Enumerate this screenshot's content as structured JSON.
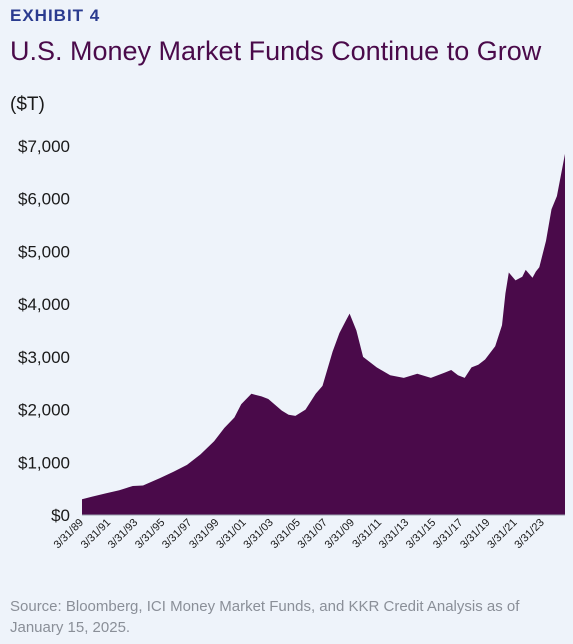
{
  "exhibit_label": "EXHIBIT 4",
  "title": "U.S. Money Market Funds Continue to Grow",
  "unit_label": "($T)",
  "source_note": "Source: Bloomberg, ICI Money Market Funds, and KKR Credit Analysis as of January 15, 2025.",
  "colors": {
    "fill": "#4a0a4a",
    "title": "#4a0a4a",
    "exhibit": "#2a3b8f",
    "background": "#eef3fa"
  },
  "chart_data": {
    "type": "area",
    "title": "U.S. Money Market Funds Continue to Grow",
    "ylabel": "($T)",
    "xlabel": "",
    "ylim": [
      0,
      7000
    ],
    "xlim": [
      1989.25,
      2024.9
    ],
    "grid": false,
    "yticks": [
      {
        "value": 0,
        "label": "$0"
      },
      {
        "value": 1000,
        "label": "$1,000"
      },
      {
        "value": 2000,
        "label": "$2,000"
      },
      {
        "value": 3000,
        "label": "$3,000"
      },
      {
        "value": 4000,
        "label": "$4,000"
      },
      {
        "value": 5000,
        "label": "$5,000"
      },
      {
        "value": 6000,
        "label": "$6,000"
      },
      {
        "value": 7000,
        "label": "$7,000"
      }
    ],
    "xticks": [
      {
        "value": 1989.25,
        "label": "3/31/89"
      },
      {
        "value": 1991.25,
        "label": "3/31/91"
      },
      {
        "value": 1993.25,
        "label": "3/31/93"
      },
      {
        "value": 1995.25,
        "label": "3/31/95"
      },
      {
        "value": 1997.25,
        "label": "3/31/97"
      },
      {
        "value": 1999.25,
        "label": "3/31/99"
      },
      {
        "value": 2001.25,
        "label": "3/31/01"
      },
      {
        "value": 2003.25,
        "label": "3/31/03"
      },
      {
        "value": 2005.25,
        "label": "3/31/05"
      },
      {
        "value": 2007.25,
        "label": "3/31/07"
      },
      {
        "value": 2009.25,
        "label": "3/31/09"
      },
      {
        "value": 2011.25,
        "label": "3/31/11"
      },
      {
        "value": 2013.25,
        "label": "3/31/13"
      },
      {
        "value": 2015.25,
        "label": "3/31/15"
      },
      {
        "value": 2017.25,
        "label": "3/31/17"
      },
      {
        "value": 2019.25,
        "label": "3/31/19"
      },
      {
        "value": 2021.25,
        "label": "3/31/21"
      },
      {
        "value": 2023.25,
        "label": "3/31/23"
      }
    ],
    "series": [
      {
        "x": [
          1989.25,
          1990.0,
          1991.0,
          1992.0,
          1993.0,
          1993.75,
          1995.0,
          1996.0,
          1997.0,
          1998.0,
          1999.0,
          1999.75,
          2000.5,
          2001.0,
          2001.75,
          2002.5,
          2003.0,
          2004.0,
          2004.5,
          2005.0,
          2005.75,
          2006.5,
          2007.0,
          2007.75,
          2008.25,
          2008.75,
          2009.0,
          2009.5,
          2010.0,
          2011.0,
          2012.0,
          2013.0,
          2014.0,
          2015.0,
          2016.0,
          2016.5,
          2017.0,
          2017.5,
          2018.0,
          2018.5,
          2019.0,
          2019.75,
          2020.25,
          2020.5,
          2020.75,
          2021.25,
          2021.75,
          2022.0,
          2022.5,
          2022.75,
          2023.0,
          2023.5,
          2023.9,
          2024.3,
          2024.9
        ],
        "values": [
          300,
          350,
          410,
          470,
          550,
          560,
          700,
          820,
          950,
          1150,
          1400,
          1650,
          1850,
          2100,
          2300,
          2250,
          2200,
          1980,
          1900,
          1880,
          2000,
          2300,
          2450,
          3100,
          3450,
          3700,
          3820,
          3500,
          3000,
          2800,
          2650,
          2600,
          2680,
          2600,
          2700,
          2750,
          2650,
          2600,
          2800,
          2850,
          2950,
          3200,
          3600,
          4200,
          4600,
          4450,
          4520,
          4650,
          4500,
          4620,
          4700,
          5200,
          5800,
          6050,
          6850
        ]
      }
    ]
  }
}
